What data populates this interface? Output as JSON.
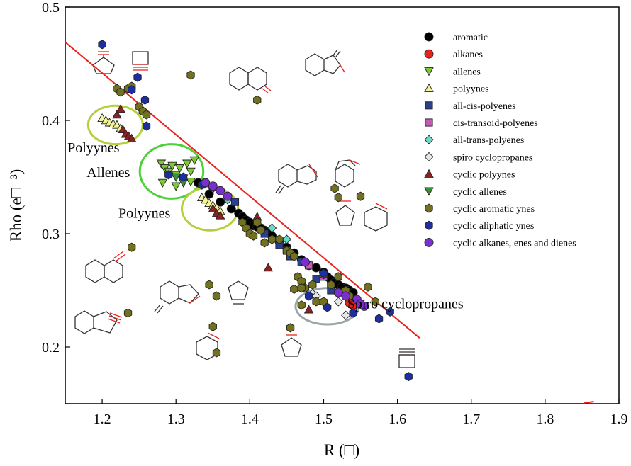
{
  "chart_data": {
    "type": "scatter",
    "xlabel": "R (□)",
    "ylabel": "Rho (e□⁻³)",
    "xlim": [
      1.15,
      1.9
    ],
    "ylim": [
      0.15,
      0.5
    ],
    "xticks": [
      "1.2",
      "1.3",
      "1.4",
      "1.5",
      "1.6",
      "1.7",
      "1.8",
      "1.9"
    ],
    "yticks": [
      "0.2",
      "0.3",
      "0.4",
      "0.5"
    ],
    "legend_position": "top-right",
    "fit_line": {
      "x": [
        1.15,
        1.63
      ],
      "y": [
        0.469,
        0.208
      ],
      "color": "#e8231c"
    },
    "series": [
      {
        "name": "aromatic",
        "marker": "circle",
        "color": "#000000",
        "x": [
          1.33,
          1.345,
          1.36,
          1.375,
          1.385,
          1.39,
          1.395,
          1.4,
          1.405,
          1.41,
          1.415,
          1.42,
          1.425,
          1.43,
          1.44,
          1.45,
          1.46,
          1.47,
          1.48,
          1.49,
          1.5,
          1.505,
          1.51,
          1.515,
          1.52,
          1.525,
          1.53,
          1.535,
          1.54
        ],
        "y": [
          0.345,
          0.335,
          0.328,
          0.322,
          0.318,
          0.315,
          0.312,
          0.31,
          0.307,
          0.306,
          0.305,
          0.303,
          0.302,
          0.298,
          0.293,
          0.288,
          0.283,
          0.277,
          0.272,
          0.27,
          0.266,
          0.262,
          0.259,
          0.257,
          0.255,
          0.253,
          0.252,
          0.25,
          0.248
        ]
      },
      {
        "name": "alkanes",
        "marker": "circle",
        "color": "#e8231c",
        "x": [
          1.535,
          1.54
        ],
        "y": [
          0.239,
          0.237
        ]
      },
      {
        "name": "allenes",
        "marker": "triangle-down",
        "color": "#7ec832",
        "x": [
          1.28,
          1.285,
          1.29,
          1.295,
          1.3,
          1.305,
          1.31,
          1.315,
          1.32,
          1.325,
          1.282,
          1.3,
          1.32
        ],
        "y": [
          0.362,
          0.358,
          0.355,
          0.36,
          0.352,
          0.358,
          0.349,
          0.362,
          0.355,
          0.365,
          0.345,
          0.342,
          0.346
        ]
      },
      {
        "name": "polyynes",
        "marker": "triangle-up",
        "color": "#f3f39a",
        "x": [
          1.2,
          1.205,
          1.21,
          1.215,
          1.22,
          1.225,
          1.335,
          1.34,
          1.345,
          1.35,
          1.355,
          1.36
        ],
        "y": [
          0.402,
          0.4,
          0.398,
          0.397,
          0.396,
          0.393,
          0.332,
          0.33,
          0.327,
          0.325,
          0.323,
          0.32
        ]
      },
      {
        "name": "all-cis-polyenes",
        "marker": "square",
        "color": "#2b3f8f",
        "x": [
          1.38,
          1.42,
          1.44,
          1.455,
          1.47,
          1.49,
          1.51
        ],
        "y": [
          0.328,
          0.3,
          0.29,
          0.28,
          0.275,
          0.26,
          0.25
        ]
      },
      {
        "name": "cis-transoid-polyenes",
        "marker": "square",
        "color": "#c757b8",
        "x": [
          1.45,
          1.48,
          1.5
        ],
        "y": [
          0.285,
          0.272,
          0.262
        ]
      },
      {
        "name": "all-trans-polyenes",
        "marker": "diamond",
        "color": "#66dccb",
        "x": [
          1.35,
          1.37,
          1.43,
          1.45
        ],
        "y": [
          0.34,
          0.33,
          0.305,
          0.295
        ]
      },
      {
        "name": "spiro cyclopropanes",
        "marker": "diamond",
        "color": "#e6e6e6",
        "x": [
          1.485,
          1.49,
          1.52,
          1.53
        ],
        "y": [
          0.247,
          0.245,
          0.24,
          0.228
        ]
      },
      {
        "name": "cyclic polyynes",
        "marker": "triangle-up",
        "color": "#8a2222",
        "x": [
          1.228,
          1.232,
          1.236,
          1.24,
          1.22,
          1.225,
          1.35,
          1.355,
          1.36,
          1.41,
          1.425,
          1.48
        ],
        "y": [
          0.392,
          0.388,
          0.386,
          0.384,
          0.405,
          0.41,
          0.322,
          0.318,
          0.316,
          0.315,
          0.27,
          0.233
        ]
      },
      {
        "name": "cyclic allenes",
        "marker": "triangle-down",
        "color": "#3b8f3b",
        "x": [
          1.3,
          1.31
        ],
        "y": [
          0.35,
          0.345
        ]
      },
      {
        "name": "cyclic aromatic ynes",
        "marker": "hexagon",
        "color": "#71711f",
        "x": [
          1.22,
          1.225,
          1.235,
          1.24,
          1.25,
          1.255,
          1.26,
          1.24,
          1.235,
          1.345,
          1.355,
          1.39,
          1.395,
          1.4,
          1.405,
          1.41,
          1.415,
          1.42,
          1.43,
          1.44,
          1.45,
          1.455,
          1.46,
          1.465,
          1.47,
          1.475,
          1.485,
          1.49,
          1.5,
          1.51,
          1.52,
          1.53,
          1.535,
          1.55,
          1.56,
          1.57,
          1.41,
          1.46,
          1.47,
          1.47,
          1.515,
          1.52,
          1.35,
          1.32,
          1.355,
          1.455,
          1.5
        ],
        "y": [
          0.428,
          0.425,
          0.428,
          0.43,
          0.412,
          0.408,
          0.405,
          0.288,
          0.23,
          0.255,
          0.245,
          0.31,
          0.305,
          0.3,
          0.298,
          0.31,
          0.303,
          0.292,
          0.295,
          0.295,
          0.285,
          0.283,
          0.28,
          0.262,
          0.258,
          0.252,
          0.255,
          0.24,
          0.24,
          0.255,
          0.262,
          0.25,
          0.245,
          0.333,
          0.253,
          0.24,
          0.418,
          0.251,
          0.252,
          0.237,
          0.34,
          0.332,
          0.218,
          0.44,
          0.195,
          0.217,
          0.264
        ]
      },
      {
        "name": "cyclic aliphatic ynes",
        "marker": "hexagon",
        "color": "#1d2fa0",
        "x": [
          1.2,
          1.24,
          1.248,
          1.258,
          1.26,
          1.29,
          1.31,
          1.335,
          1.5,
          1.505,
          1.54,
          1.575,
          1.59,
          1.615,
          1.48
        ],
        "y": [
          0.467,
          0.427,
          0.438,
          0.418,
          0.395,
          0.352,
          0.35,
          0.343,
          0.265,
          0.235,
          0.23,
          0.225,
          0.231,
          0.174,
          0.245
        ]
      },
      {
        "name": "cyclic alkanes, enes and dienes",
        "marker": "circle",
        "color": "#7a2fd0",
        "x": [
          1.34,
          1.35,
          1.36,
          1.37,
          1.475,
          1.52,
          1.53,
          1.545,
          1.55,
          1.555
        ],
        "y": [
          0.345,
          0.342,
          0.338,
          0.333,
          0.275,
          0.248,
          0.245,
          0.242,
          0.238,
          0.236
        ]
      }
    ],
    "annotations": [
      {
        "text": "Polyynes",
        "x": 1.153,
        "y": 0.372
      },
      {
        "text": "Allenes",
        "x": 1.179,
        "y": 0.35
      },
      {
        "text": "Polyynes",
        "x": 1.222,
        "y": 0.314
      },
      {
        "text": "Spiro cyclopropanes",
        "x": 1.532,
        "y": 0.234
      }
    ],
    "ellipses": [
      {
        "cx": 1.218,
        "cy": 0.396,
        "rx": 0.037,
        "ry": 0.017,
        "color": "#b4cf3c"
      },
      {
        "cx": 1.294,
        "cy": 0.355,
        "rx": 0.043,
        "ry": 0.024,
        "color": "#4cd139"
      },
      {
        "cx": 1.346,
        "cy": 0.322,
        "rx": 0.038,
        "ry": 0.019,
        "color": "#b4cf3c"
      },
      {
        "cx": 1.505,
        "cy": 0.236,
        "rx": 0.043,
        "ry": 0.016,
        "color": "#9aa5a8"
      }
    ]
  }
}
